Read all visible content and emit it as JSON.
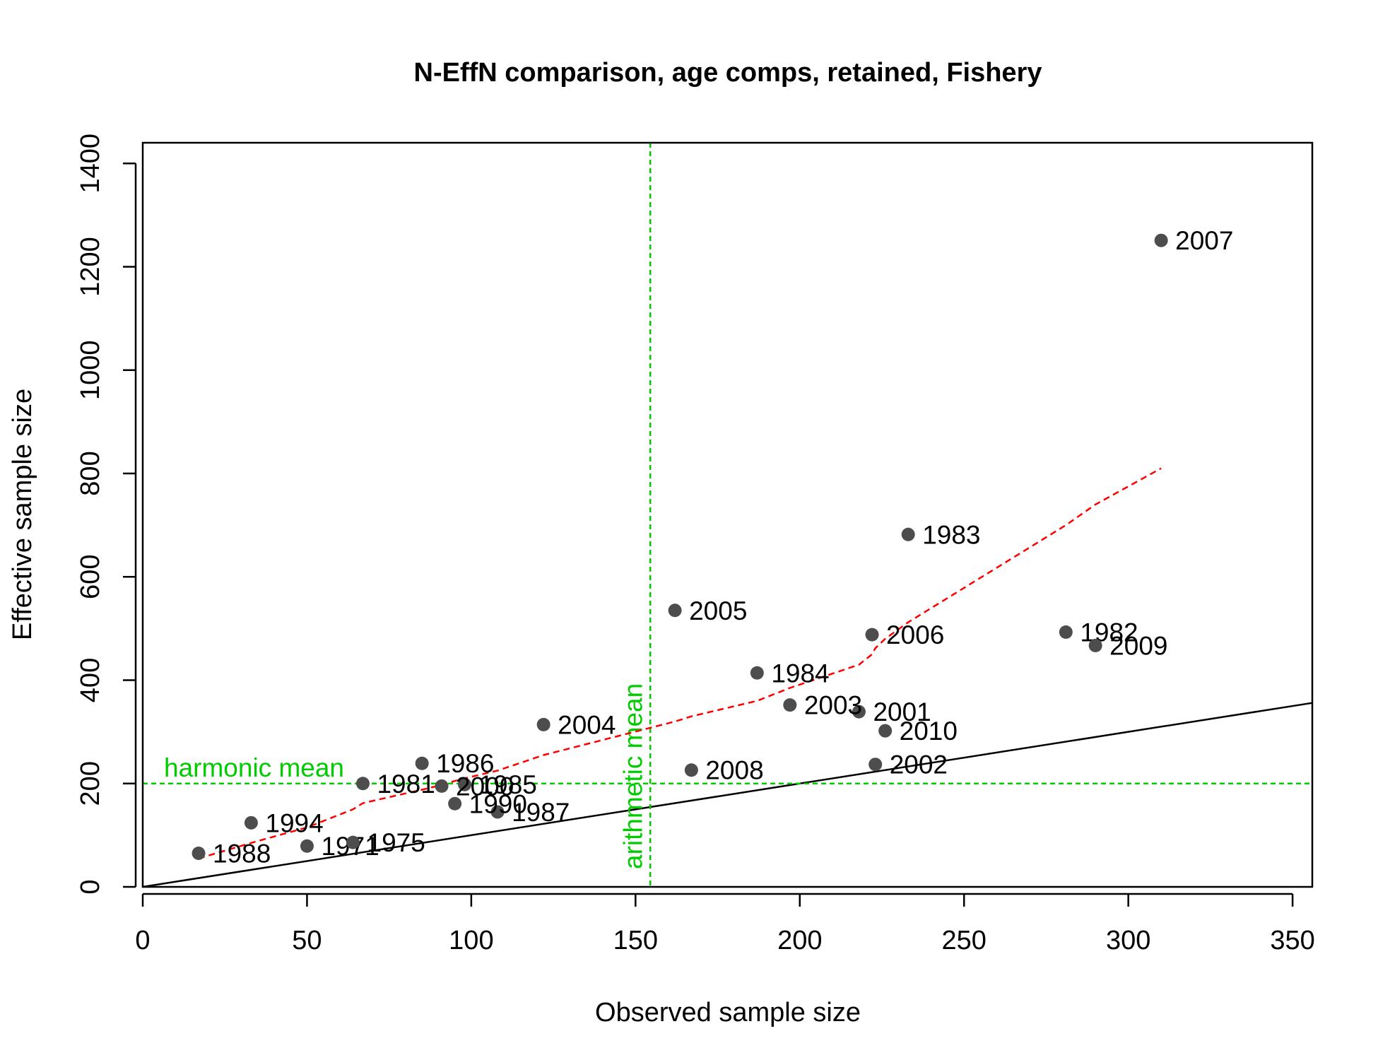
{
  "chart_data": {
    "type": "scatter",
    "title": "N-EffN comparison, age comps, retained, Fishery",
    "xlabel": "Observed sample size",
    "ylabel": "Effective sample size",
    "xlim": [
      0,
      356
    ],
    "ylim": [
      0,
      1440
    ],
    "xticks": [
      "0",
      "50",
      "100",
      "150",
      "200",
      "250",
      "300",
      "350"
    ],
    "yticks": [
      "0",
      "200",
      "400",
      "600",
      "800",
      "1000",
      "1200",
      "1400"
    ],
    "grid": false,
    "points": [
      {
        "label": "1971",
        "x": 50,
        "y": 79
      },
      {
        "label": "1975",
        "x": 64,
        "y": 86
      },
      {
        "label": "1981",
        "x": 67,
        "y": 200
      },
      {
        "label": "1982",
        "x": 281,
        "y": 493
      },
      {
        "label": "1983",
        "x": 233,
        "y": 682
      },
      {
        "label": "1984",
        "x": 187,
        "y": 414
      },
      {
        "label": "1985",
        "x": 98,
        "y": 198
      },
      {
        "label": "1986",
        "x": 85,
        "y": 239
      },
      {
        "label": "1987",
        "x": 108,
        "y": 145
      },
      {
        "label": "1988",
        "x": 17,
        "y": 65
      },
      {
        "label": "1990",
        "x": 95,
        "y": 161
      },
      {
        "label": "1994",
        "x": 33,
        "y": 124
      },
      {
        "label": "2000",
        "x": 91,
        "y": 195
      },
      {
        "label": "2001",
        "x": 218,
        "y": 339
      },
      {
        "label": "2002",
        "x": 223,
        "y": 237
      },
      {
        "label": "2003",
        "x": 197,
        "y": 352
      },
      {
        "label": "2004",
        "x": 122,
        "y": 314
      },
      {
        "label": "2005",
        "x": 162,
        "y": 535
      },
      {
        "label": "2006",
        "x": 222,
        "y": 488
      },
      {
        "label": "2007",
        "x": 310,
        "y": 1251
      },
      {
        "label": "2008",
        "x": 167,
        "y": 226
      },
      {
        "label": "2009",
        "x": 290,
        "y": 467
      },
      {
        "label": "2010",
        "x": 226,
        "y": 302
      }
    ],
    "smoother": {
      "x": [
        17,
        33,
        50,
        64,
        67,
        85,
        91,
        95,
        98,
        108,
        122,
        162,
        167,
        187,
        197,
        218,
        222,
        223,
        226,
        233,
        281,
        290,
        310
      ],
      "y": [
        55,
        85,
        115,
        150,
        162,
        188,
        197,
        205,
        210,
        225,
        255,
        320,
        330,
        360,
        385,
        430,
        450,
        462,
        480,
        512,
        700,
        740,
        810
      ]
    },
    "one_to_one_line": true,
    "harmonic_mean": {
      "label": "harmonic mean",
      "value": 200
    },
    "arithmetic_mean": {
      "label": "arithmetic mean",
      "value": 154.5
    },
    "colors": {
      "points": "#4d4d4d",
      "smoother": "#ff0000",
      "reference_lines": "#00cc00",
      "one_to_one": "#000000"
    }
  }
}
